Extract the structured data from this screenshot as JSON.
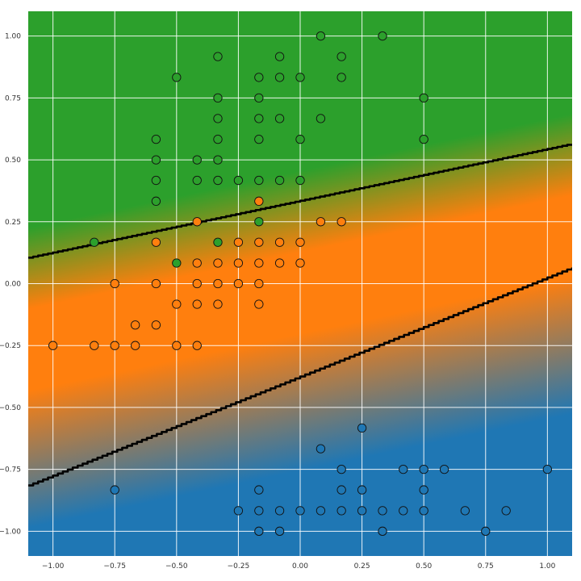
{
  "chart_data": {
    "type": "scatter",
    "title": "",
    "xlabel": "",
    "ylabel": "",
    "xlim": [
      -1.1,
      1.1
    ],
    "ylim": [
      -1.1,
      1.1
    ],
    "grid": true,
    "x_ticks": [
      -1.0,
      -0.75,
      -0.5,
      -0.25,
      0.0,
      0.25,
      0.5,
      0.75,
      1.0
    ],
    "y_ticks": [
      -1.0,
      -0.75,
      -0.5,
      -0.25,
      0.0,
      0.25,
      0.5,
      0.75,
      1.0
    ],
    "x_tick_labels": [
      "−1.00",
      "−0.75",
      "−0.50",
      "−0.25",
      "0.00",
      "0.25",
      "0.50",
      "0.75",
      "1.00"
    ],
    "y_tick_labels": [
      "−1.00",
      "−0.75",
      "−0.50",
      "−0.25",
      "0.00",
      "0.25",
      "0.50",
      "0.75",
      "1.00"
    ],
    "colors": {
      "green": "#2ca02c",
      "orange": "#ff7f0e",
      "blue": "#1f77b4",
      "boundary": "#000000",
      "grid": "#ffffff"
    },
    "background_regions": "green above upper boundary, orange between boundaries, blue below lower boundary (soft gradient transitions)",
    "boundaries": [
      {
        "x": [
          -1.1,
          1.1
        ],
        "y": [
          0.105,
          0.565
        ]
      },
      {
        "x": [
          -1.1,
          1.1
        ],
        "y": [
          -0.815,
          0.065
        ]
      }
    ],
    "series": [
      {
        "class": "green",
        "points": [
          [
            0.083,
            1.0
          ],
          [
            0.333,
            1.0
          ],
          [
            -0.333,
            0.917
          ],
          [
            -0.083,
            0.917
          ],
          [
            0.167,
            0.917
          ],
          [
            -0.5,
            0.833
          ],
          [
            -0.167,
            0.833
          ],
          [
            -0.083,
            0.833
          ],
          [
            0.0,
            0.833
          ],
          [
            0.167,
            0.833
          ],
          [
            -0.333,
            0.75
          ],
          [
            -0.167,
            0.75
          ],
          [
            0.5,
            0.75
          ],
          [
            -0.333,
            0.667
          ],
          [
            -0.167,
            0.667
          ],
          [
            -0.083,
            0.667
          ],
          [
            0.083,
            0.667
          ],
          [
            -0.583,
            0.583
          ],
          [
            -0.333,
            0.583
          ],
          [
            -0.167,
            0.583
          ],
          [
            0.0,
            0.583
          ],
          [
            0.5,
            0.583
          ],
          [
            -0.583,
            0.5
          ],
          [
            -0.417,
            0.5
          ],
          [
            -0.333,
            0.5
          ],
          [
            -0.583,
            0.417
          ],
          [
            -0.417,
            0.417
          ],
          [
            -0.333,
            0.417
          ],
          [
            -0.25,
            0.417
          ],
          [
            -0.167,
            0.417
          ],
          [
            -0.083,
            0.417
          ],
          [
            0.0,
            0.417
          ],
          [
            -0.583,
            0.333
          ],
          [
            -0.167,
            0.25
          ],
          [
            -0.833,
            0.167
          ],
          [
            -0.333,
            0.167
          ],
          [
            -0.5,
            0.083
          ]
        ]
      },
      {
        "class": "orange",
        "points": [
          [
            -0.167,
            0.333
          ],
          [
            -0.417,
            0.25
          ],
          [
            0.083,
            0.25
          ],
          [
            0.167,
            0.25
          ],
          [
            -0.583,
            0.167
          ],
          [
            -0.25,
            0.167
          ],
          [
            -0.167,
            0.167
          ],
          [
            -0.083,
            0.167
          ],
          [
            0.0,
            0.167
          ],
          [
            -0.417,
            0.083
          ],
          [
            -0.333,
            0.083
          ],
          [
            -0.25,
            0.083
          ],
          [
            -0.167,
            0.083
          ],
          [
            -0.083,
            0.083
          ],
          [
            0.0,
            0.083
          ],
          [
            -0.75,
            0.0
          ],
          [
            -0.583,
            0.0
          ],
          [
            -0.417,
            0.0
          ],
          [
            -0.333,
            0.0
          ],
          [
            -0.25,
            0.0
          ],
          [
            -0.167,
            0.0
          ],
          [
            -0.5,
            -0.083
          ],
          [
            -0.417,
            -0.083
          ],
          [
            -0.333,
            -0.083
          ],
          [
            -0.167,
            -0.083
          ],
          [
            -0.667,
            -0.167
          ],
          [
            -0.583,
            -0.167
          ],
          [
            -1.0,
            -0.25
          ],
          [
            -0.833,
            -0.25
          ],
          [
            -0.75,
            -0.25
          ],
          [
            -0.667,
            -0.25
          ],
          [
            -0.5,
            -0.25
          ],
          [
            -0.417,
            -0.25
          ]
        ]
      },
      {
        "class": "blue",
        "points": [
          [
            0.25,
            -0.583
          ],
          [
            0.083,
            -0.667
          ],
          [
            0.167,
            -0.75
          ],
          [
            0.417,
            -0.75
          ],
          [
            0.5,
            -0.75
          ],
          [
            0.583,
            -0.75
          ],
          [
            1.0,
            -0.75
          ],
          [
            -0.75,
            -0.833
          ],
          [
            -0.167,
            -0.833
          ],
          [
            0.167,
            -0.833
          ],
          [
            0.25,
            -0.833
          ],
          [
            0.5,
            -0.833
          ],
          [
            -0.25,
            -0.917
          ],
          [
            -0.167,
            -0.917
          ],
          [
            -0.083,
            -0.917
          ],
          [
            0.0,
            -0.917
          ],
          [
            0.083,
            -0.917
          ],
          [
            0.167,
            -0.917
          ],
          [
            0.25,
            -0.917
          ],
          [
            0.333,
            -0.917
          ],
          [
            0.417,
            -0.917
          ],
          [
            0.5,
            -0.917
          ],
          [
            0.667,
            -0.917
          ],
          [
            0.833,
            -0.917
          ],
          [
            -0.167,
            -1.0
          ],
          [
            -0.083,
            -1.0
          ],
          [
            0.333,
            -1.0
          ],
          [
            0.75,
            -1.0
          ]
        ]
      }
    ]
  }
}
